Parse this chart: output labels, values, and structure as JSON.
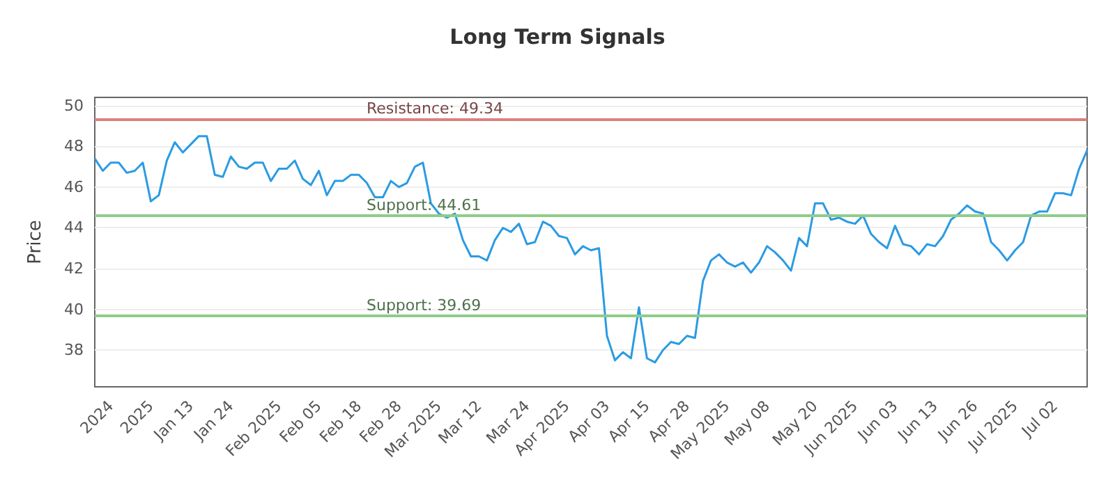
{
  "chart_data": {
    "type": "line",
    "title": "Long Term Signals",
    "ylabel": "Price",
    "categories": [
      null,
      null,
      "2024",
      null,
      null,
      null,
      null,
      "2025",
      null,
      null,
      null,
      null,
      "Jan 13",
      null,
      null,
      null,
      null,
      "Jan 24",
      null,
      null,
      null,
      null,
      null,
      "Feb 2025",
      null,
      null,
      null,
      null,
      "Feb 05",
      null,
      null,
      null,
      null,
      "Feb 18",
      null,
      null,
      null,
      null,
      "Feb 28",
      null,
      null,
      null,
      null,
      "Mar 2025",
      null,
      null,
      null,
      null,
      "Mar 12",
      null,
      null,
      null,
      null,
      null,
      "Mar 24",
      null,
      null,
      null,
      null,
      "Apr 2025",
      null,
      null,
      null,
      null,
      "Apr 03",
      null,
      null,
      null,
      null,
      "Apr 15",
      null,
      null,
      null,
      null,
      "Apr 28",
      null,
      null,
      null,
      null,
      "May 2025",
      null,
      null,
      null,
      null,
      "May 08",
      null,
      null,
      null,
      null,
      null,
      "May 20",
      null,
      null,
      null,
      null,
      "Jun 2025",
      null,
      null,
      null,
      null,
      "Jun 03",
      null,
      null,
      null,
      null,
      "Jun 13",
      null,
      null,
      null,
      null,
      "Jun 26",
      null,
      null,
      null,
      null,
      "Jul 2025",
      null,
      null,
      null,
      null,
      "Jul 02",
      null,
      null,
      null,
      null
    ],
    "series": [
      {
        "color": "#2b9be3",
        "values": [
          47.4,
          46.8,
          47.2,
          47.2,
          46.7,
          46.8,
          47.2,
          45.3,
          45.6,
          47.3,
          48.2,
          47.7,
          48.1,
          48.5,
          48.5,
          46.6,
          46.5,
          47.5,
          47.0,
          46.9,
          47.2,
          47.2,
          46.3,
          46.9,
          46.9,
          47.3,
          46.4,
          46.1,
          46.8,
          45.6,
          46.3,
          46.3,
          46.6,
          46.6,
          46.2,
          45.5,
          45.5,
          46.3,
          46.0,
          46.2,
          47.0,
          47.2,
          45.2,
          44.7,
          44.5,
          44.7,
          43.4,
          42.6,
          42.6,
          42.4,
          43.4,
          44.0,
          43.8,
          44.2,
          43.2,
          43.3,
          44.3,
          44.1,
          43.6,
          43.5,
          42.7,
          43.1,
          42.9,
          43.0,
          38.7,
          37.5,
          37.9,
          37.6,
          40.1,
          37.6,
          37.4,
          38.0,
          38.4,
          38.3,
          38.7,
          38.6,
          41.4,
          42.4,
          42.7,
          42.3,
          42.1,
          42.3,
          41.8,
          42.3,
          43.1,
          42.8,
          42.4,
          41.9,
          43.5,
          43.1,
          45.2,
          45.2,
          44.4,
          44.5,
          44.3,
          44.2,
          44.6,
          43.7,
          43.3,
          43.0,
          44.1,
          43.2,
          43.1,
          42.7,
          43.2,
          43.1,
          43.6,
          44.4,
          44.7,
          45.1,
          44.8,
          44.7,
          43.3,
          42.9,
          42.4,
          42.9,
          43.3,
          44.6,
          44.8,
          44.8,
          45.7,
          45.7,
          45.6,
          46.9,
          47.8
        ]
      }
    ],
    "ylim": [
      36.2,
      50.4
    ],
    "yticks": [
      38,
      40,
      42,
      44,
      46,
      48,
      50
    ],
    "grid": "y",
    "ref_lines": [
      {
        "axis": "y",
        "value": 49.34,
        "label": "Resistance: 49.34",
        "color": "#d9807f"
      },
      {
        "axis": "y",
        "value": 44.61,
        "label": "Support: 44.61",
        "color": "#8fcc8a"
      },
      {
        "axis": "y",
        "value": 39.69,
        "label": "Support: 39.69",
        "color": "#8fcc8a"
      }
    ]
  }
}
